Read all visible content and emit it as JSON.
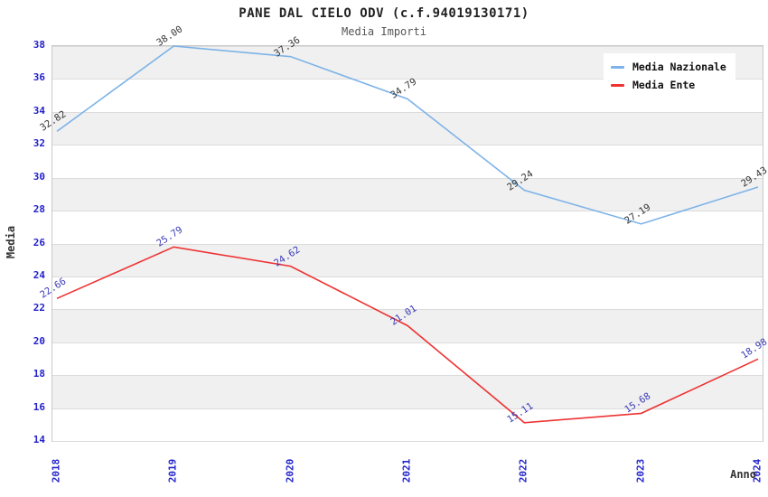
{
  "chart_data": {
    "type": "line",
    "title": "PANE DAL CIELO ODV (c.f.94019130171)",
    "subtitle": "Media Importi",
    "xlabel": "Anno",
    "ylabel": "Media",
    "categories": [
      "2018",
      "2019",
      "2020",
      "2021",
      "2022",
      "2023",
      "2024"
    ],
    "series": [
      {
        "name": "Media Nazionale",
        "color": "#7db3e8",
        "label_color": "#333333",
        "values": [
          32.82,
          38.0,
          37.36,
          34.79,
          29.24,
          27.19,
          29.43
        ]
      },
      {
        "name": "Media Ente",
        "color": "#ee3333",
        "label_color": "#3939b8",
        "values": [
          22.66,
          25.79,
          24.62,
          21.01,
          15.11,
          15.68,
          18.98
        ]
      }
    ],
    "ylim": [
      14,
      38
    ],
    "ytick_step": 2,
    "grid": true,
    "legend_position": "top-right",
    "band_color": "#f0f0f0",
    "gridline_color": "#dcdcdc",
    "tick_color": "#2222cc"
  }
}
